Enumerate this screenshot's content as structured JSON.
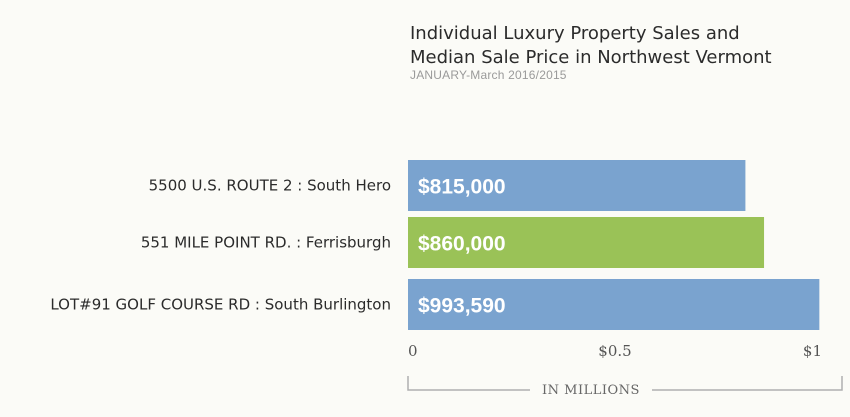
{
  "chart_data": {
    "type": "bar",
    "orientation": "horizontal",
    "title_line1": "Individual Luxury Property Sales and",
    "title_line2": "Median Sale Price in Northwest Vermont",
    "subtitle": "JANUARY-March  2016/2015",
    "categories": [
      "5500 U.S. ROUTE 2  :  South Hero",
      "551 MILE POINT RD.  :  Ferrisburgh",
      "LOT#91 GOLF COURSE RD  :  South Burlington"
    ],
    "values": [
      0.815,
      0.86,
      0.99359
    ],
    "value_labels": [
      "$815,000",
      "$860,000",
      "$993,590"
    ],
    "bar_colors": [
      "#7aa3cf",
      "#9ac257",
      "#7aa3cf"
    ],
    "x_ticks": [
      {
        "value": 0,
        "label": "0"
      },
      {
        "value": 0.5,
        "label": "$0.5"
      },
      {
        "value": 1,
        "label": "$1"
      }
    ],
    "xlabel": "IN MILLIONS",
    "xlim": [
      0,
      1
    ],
    "grid": false,
    "legend": "none"
  }
}
